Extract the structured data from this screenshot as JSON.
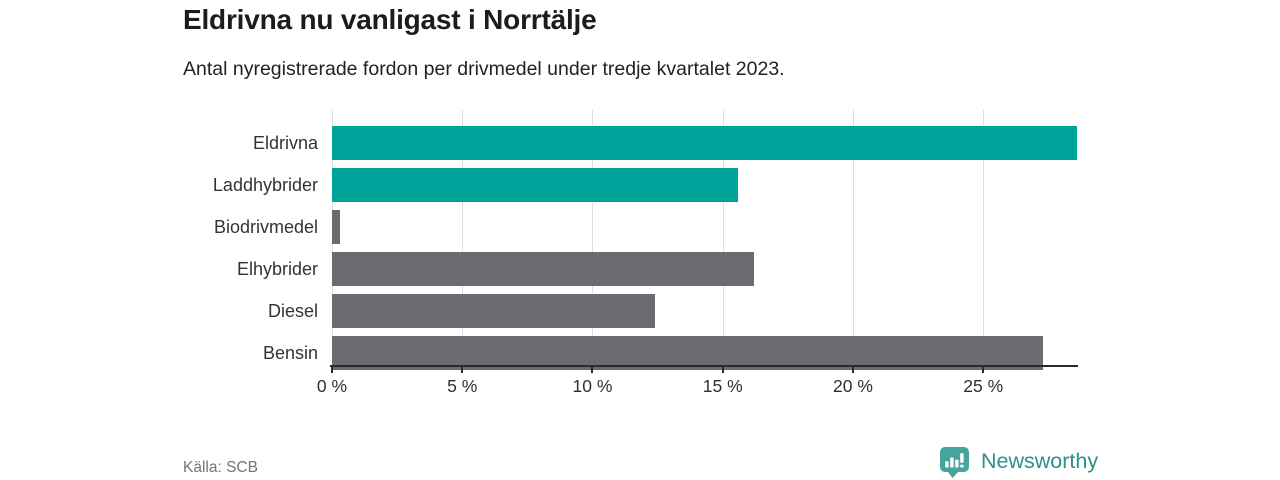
{
  "header": {
    "title": "Eldrivna nu vanligast i Norrtälje",
    "subtitle": "Antal nyregistrerade fordon per drivmedel under tredje kvartalet 2023."
  },
  "chart_data": {
    "type": "bar",
    "orientation": "horizontal",
    "title": "Eldrivna nu vanligast i Norrtälje",
    "subtitle": "Antal nyregistrerade fordon per drivmedel under tredje kvartalet 2023.",
    "categories": [
      "Eldrivna",
      "Laddhybrider",
      "Biodrivmedel",
      "Elhybrider",
      "Diesel",
      "Bensin"
    ],
    "values": [
      28.6,
      15.6,
      0.3,
      16.2,
      12.4,
      27.3
    ],
    "unit": "%",
    "bar_colors": [
      "#00a399",
      "#00a399",
      "#6b6b72",
      "#6b6b72",
      "#6b6b72",
      "#6b6b72"
    ],
    "xlabel": "",
    "ylabel": "",
    "xlim": [
      0,
      28.6
    ],
    "xticks": [
      0,
      5,
      10,
      15,
      20,
      25
    ],
    "xtick_suffix": " %",
    "grid": true,
    "legend": "none",
    "data_labels": "none"
  },
  "colors": {
    "highlight": "#00a399",
    "neutral": "#6b6b72",
    "brand": "#2f8f89",
    "brand_icon": "#46a49d",
    "gridline": "#dedede",
    "axis": "#2b2b2b"
  },
  "footer": {
    "source": "Källa: SCB",
    "brand_name": "Newsworthy"
  }
}
